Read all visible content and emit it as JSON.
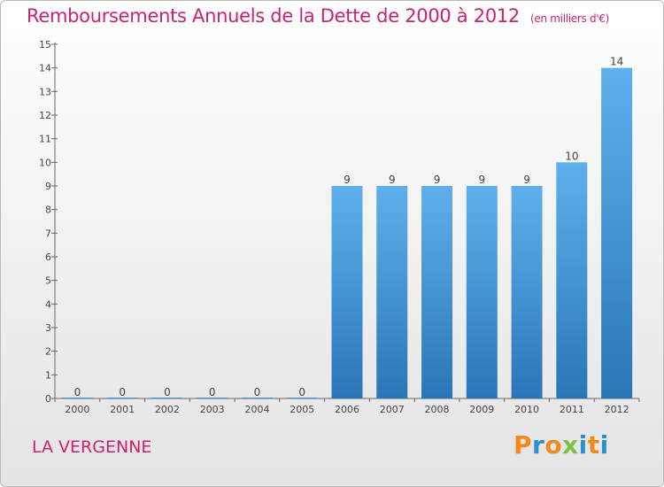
{
  "chart_data": {
    "type": "bar",
    "title": "Remboursements Annuels de la Dette de 2000 à 2012",
    "unit": "(en milliers d'€)",
    "categories": [
      "2000",
      "2001",
      "2002",
      "2003",
      "2004",
      "2005",
      "2006",
      "2007",
      "2008",
      "2009",
      "2010",
      "2011",
      "2012"
    ],
    "values": [
      0,
      0,
      0,
      0,
      0,
      0,
      9,
      9,
      9,
      9,
      9,
      10,
      14
    ],
    "ylim": [
      0,
      15
    ],
    "yticks": [
      0,
      1,
      2,
      3,
      4,
      5,
      6,
      7,
      8,
      9,
      10,
      11,
      12,
      13,
      14,
      15
    ],
    "grid": false,
    "bar_color": "#3a8fd6",
    "title_color": "#d11f6d"
  },
  "footer": {
    "commune": "LA VERGENNE"
  },
  "brand": {
    "letters": [
      "P",
      "r",
      "o",
      "x",
      "i",
      "t",
      "i"
    ],
    "colors": [
      "#f28a1b",
      "#2b8fd6",
      "#f28a1b",
      "#7cc242",
      "#2b8fd6",
      "#f28a1b",
      "#2b8fd6"
    ]
  }
}
